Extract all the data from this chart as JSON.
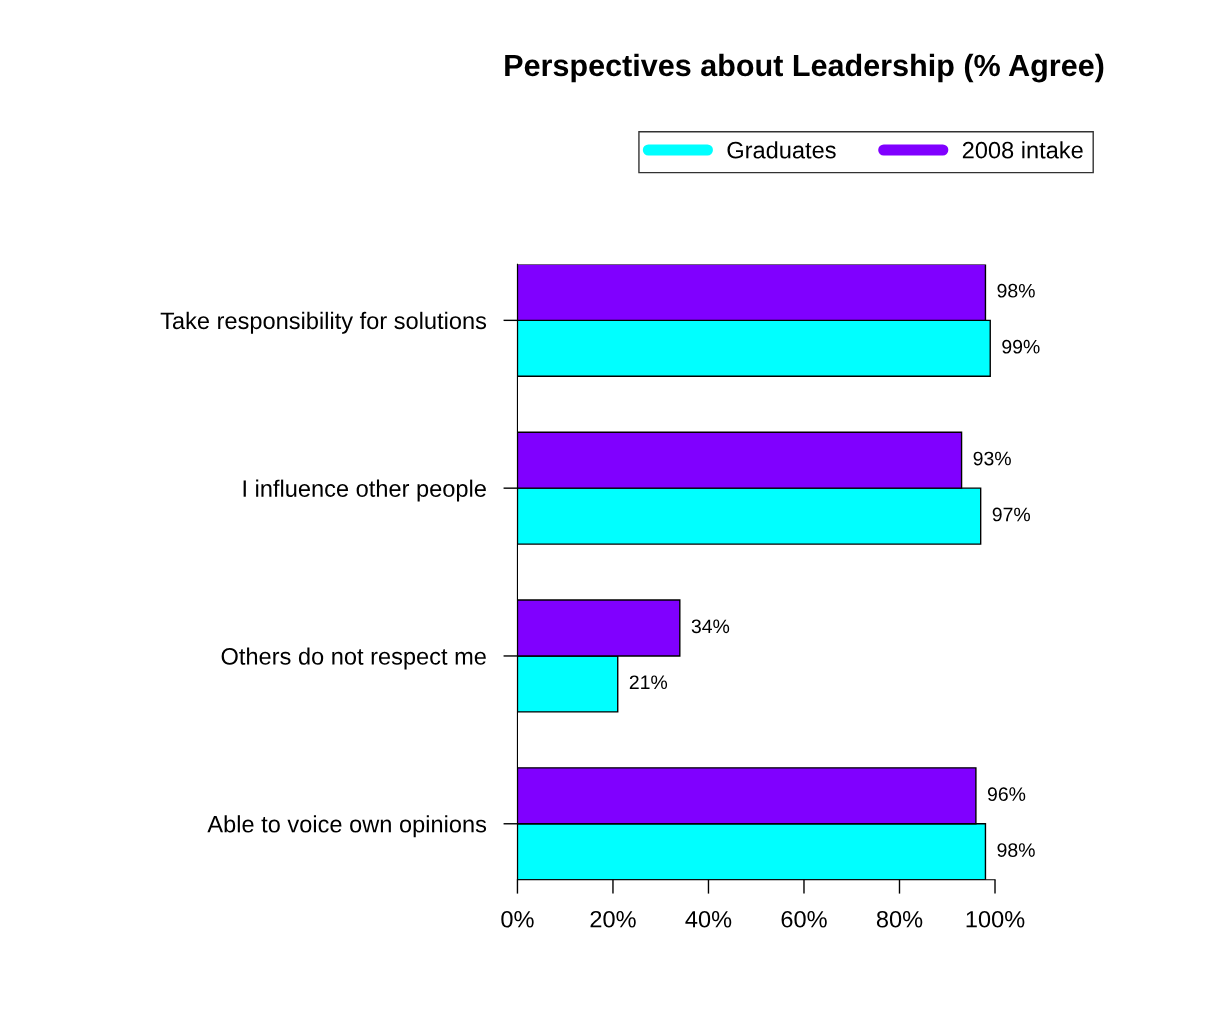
{
  "chart_data": {
    "type": "bar",
    "orientation": "horizontal",
    "title": "Perspectives about Leadership (% Agree)",
    "categories": [
      "Take responsibility for solutions",
      "I influence other people",
      "Others do not respect me",
      "Able to voice own opinions"
    ],
    "series": [
      {
        "name": "Graduates",
        "color": "#00ffff",
        "values": [
          99,
          97,
          21,
          98
        ],
        "value_labels": [
          "99%",
          "97%",
          "21%",
          "98%"
        ]
      },
      {
        "name": "2008 intake",
        "color": "#8000ff",
        "values": [
          98,
          93,
          34,
          96
        ],
        "value_labels": [
          "98%",
          "93%",
          "34%",
          "96%"
        ]
      }
    ],
    "xlim": [
      0,
      100
    ],
    "xticks": [
      {
        "value": 0,
        "label": "0%"
      },
      {
        "value": 20,
        "label": "20%"
      },
      {
        "value": 40,
        "label": "40%"
      },
      {
        "value": 60,
        "label": "60%"
      },
      {
        "value": 80,
        "label": "80%"
      },
      {
        "value": 100,
        "label": "100%"
      }
    ],
    "legend": "top",
    "grid": false
  }
}
